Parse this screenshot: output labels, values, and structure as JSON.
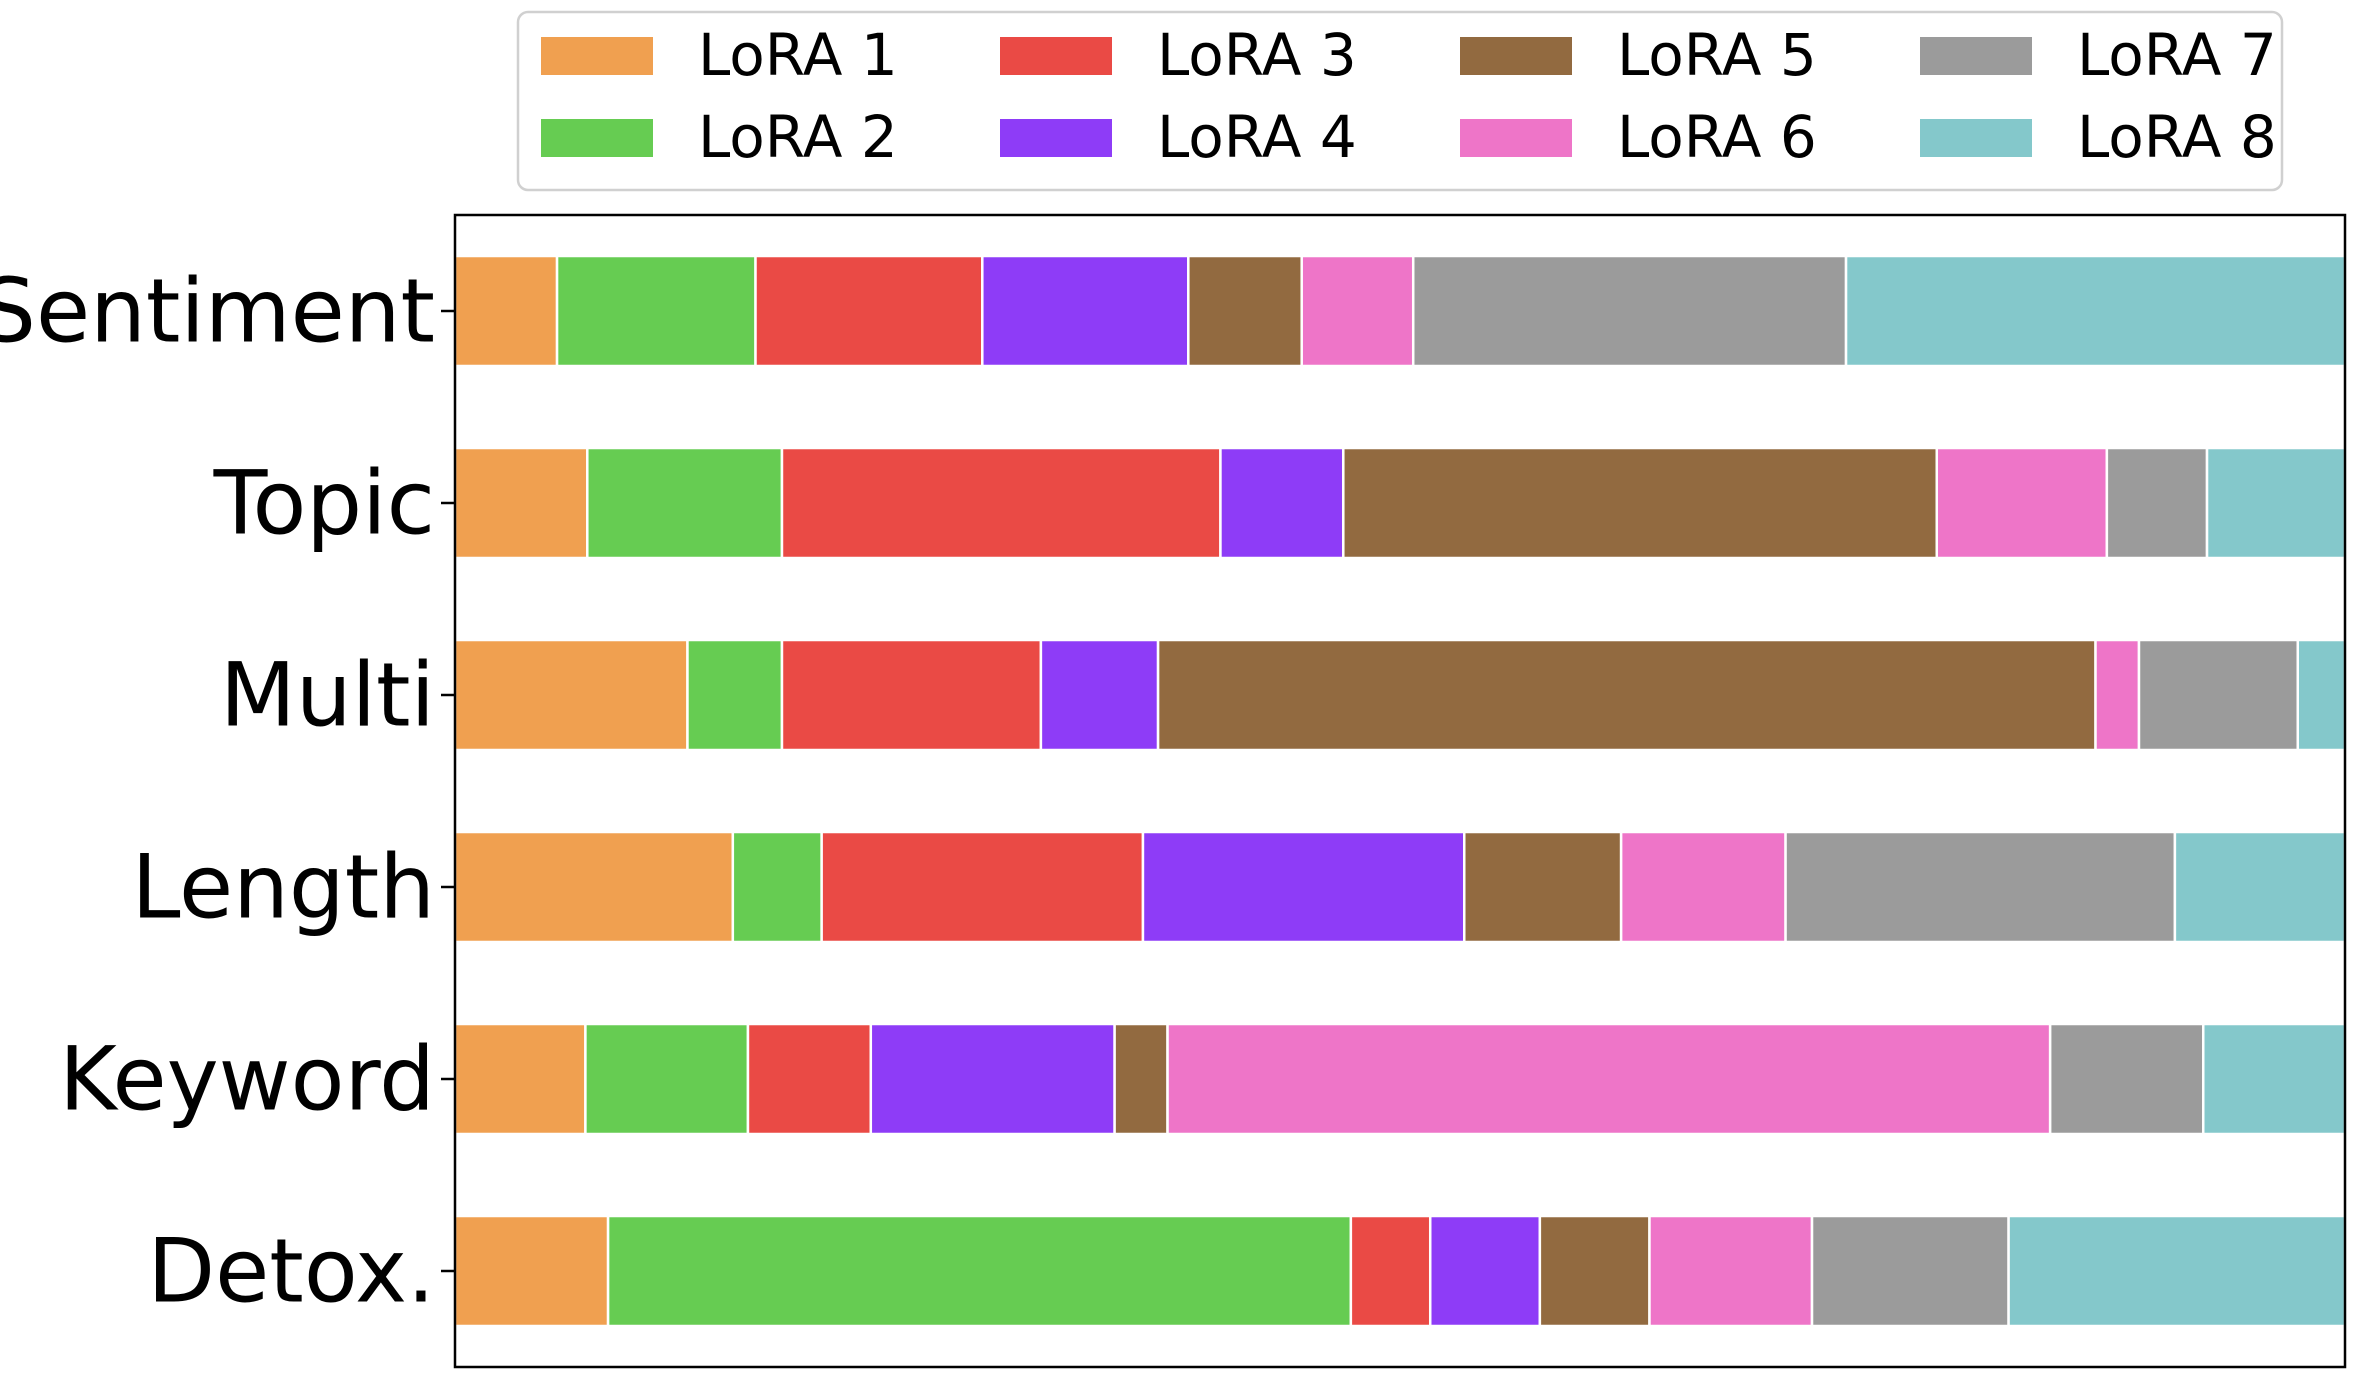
{
  "chart_data": {
    "type": "bar",
    "orientation": "horizontal",
    "stacked": true,
    "normalized": true,
    "title": "",
    "xlabel": "",
    "ylabel": "",
    "xlim": [
      0,
      1
    ],
    "grid": false,
    "x_ticks_visible": false,
    "legend_position": "top",
    "categories": [
      "Sentiment",
      "Topic",
      "Multi",
      "Length",
      "Keyword",
      "Detox."
    ],
    "series": [
      {
        "name": "LoRA 1",
        "color": "#F0A050",
        "values": [
          0.054,
          0.07,
          0.123,
          0.147,
          0.069,
          0.081
        ]
      },
      {
        "name": "LoRA 2",
        "color": "#66CC52",
        "values": [
          0.105,
          0.103,
          0.05,
          0.047,
          0.086,
          0.393
        ]
      },
      {
        "name": "LoRA 3",
        "color": "#EA4A45",
        "values": [
          0.12,
          0.232,
          0.137,
          0.17,
          0.065,
          0.042
        ]
      },
      {
        "name": "LoRA 4",
        "color": "#8E3CF7",
        "values": [
          0.109,
          0.065,
          0.062,
          0.17,
          0.129,
          0.058
        ]
      },
      {
        "name": "LoRA 5",
        "color": "#926A40",
        "values": [
          0.06,
          0.314,
          0.496,
          0.083,
          0.028,
          0.058
        ]
      },
      {
        "name": "LoRA 6",
        "color": "#EE75C8",
        "values": [
          0.059,
          0.09,
          0.023,
          0.087,
          0.467,
          0.086
        ]
      },
      {
        "name": "LoRA 7",
        "color": "#9B9B9B",
        "values": [
          0.229,
          0.053,
          0.084,
          0.206,
          0.081,
          0.104
        ]
      },
      {
        "name": "LoRA 8",
        "color": "#84C8CB",
        "values": [
          0.264,
          0.073,
          0.025,
          0.09,
          0.075,
          0.178
        ]
      }
    ]
  }
}
